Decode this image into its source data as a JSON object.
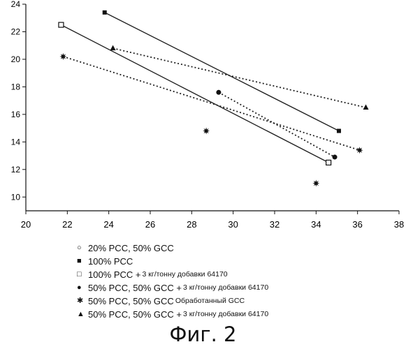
{
  "chart_data": {
    "type": "scatter",
    "title": "",
    "xlabel": "",
    "ylabel": "",
    "xlim": [
      20,
      38
    ],
    "ylim": [
      9,
      24
    ],
    "xticks": [
      20,
      22,
      24,
      26,
      28,
      30,
      32,
      34,
      36,
      38
    ],
    "yticks": [
      10,
      12,
      14,
      16,
      18,
      20,
      22,
      24
    ],
    "grid": false,
    "series": [
      {
        "name": "20% PCC, 50% GCC",
        "marker": "circle-open",
        "line": "none",
        "points": []
      },
      {
        "name": "100% PCC",
        "marker": "square-filled",
        "line": "solid",
        "points": [
          [
            23.8,
            23.4
          ],
          [
            35.1,
            14.8
          ]
        ]
      },
      {
        "name": "100% PCC +3 кг/тонну добавки 64170",
        "marker": "square-open",
        "line": "solid",
        "points": [
          [
            21.7,
            22.5
          ],
          [
            34.6,
            12.5
          ]
        ]
      },
      {
        "name": "50% PCC, 50% GCC +3 кг/тонну добавки 64170",
        "marker": "circle-filled",
        "line": "dotted",
        "points": [
          [
            29.3,
            17.6
          ],
          [
            34.9,
            12.9
          ]
        ]
      },
      {
        "name": "50% PCC, 50% GCC Обработанный GCC",
        "marker": "star",
        "line": "dotted",
        "points": [
          [
            21.8,
            20.2
          ],
          [
            28.7,
            14.8
          ],
          [
            34.0,
            11.0
          ],
          [
            36.1,
            13.4
          ]
        ]
      },
      {
        "name": "50% PCC, 50% GCC +3 кг/тонну добавки 64170",
        "marker": "triangle",
        "line": "dotted",
        "points": [
          [
            24.2,
            20.8
          ],
          [
            36.4,
            16.5
          ]
        ]
      }
    ]
  },
  "legend": [
    {
      "icon": "open-circle-icon",
      "mark": "○",
      "label": "20% PCC, 50% GCC",
      "small": ""
    },
    {
      "icon": "filled-square-icon",
      "mark": "■",
      "label": "100% PCC",
      "small": ""
    },
    {
      "icon": "open-square-icon",
      "mark": "□",
      "label": "100% PCC +",
      "small": "3 кг/тонну добавки 64170"
    },
    {
      "icon": "filled-circle-icon",
      "mark": "●",
      "label": "50% PCC, 50% GCC +",
      "small": "3 кг/тонну добавки 64170"
    },
    {
      "icon": "star-icon",
      "mark": "✱",
      "label": "50% PCC, 50% GCC",
      "small": "Обработанный GCC"
    },
    {
      "icon": "triangle-icon",
      "mark": "▲",
      "label": "50% PCC, 50% GCC +",
      "small": "3 кг/тонну добавки 64170"
    }
  ],
  "caption": "Фиг. 2"
}
